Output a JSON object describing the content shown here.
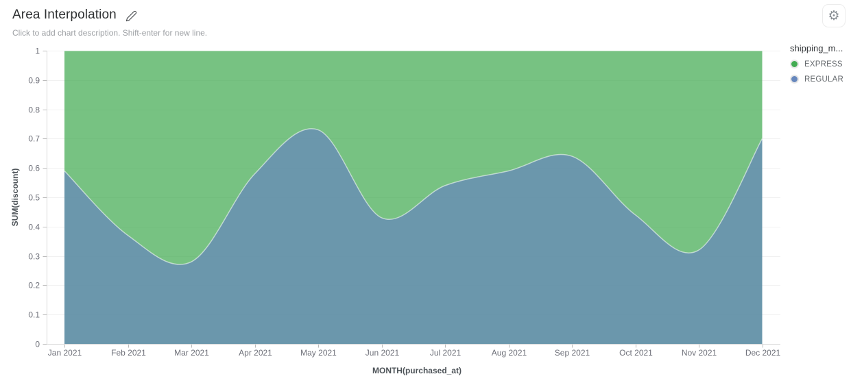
{
  "header": {
    "title": "Area Interpolation",
    "subtitle": "Click to add chart description. Shift-enter for new line."
  },
  "icons": {
    "edit_icon": "pencil",
    "settings_icon": "gear",
    "settings_glyph": "⚙"
  },
  "legend": {
    "title": "shipping_m...",
    "items": [
      {
        "label": "EXPRESS",
        "color": "#42ab52"
      },
      {
        "label": "REGULAR",
        "color": "#6687bd"
      }
    ]
  },
  "chart_data": {
    "type": "area",
    "variant": "stacked-to-100-percent",
    "smooth": true,
    "grid": true,
    "legend_position": "right",
    "title": "Area Interpolation",
    "xlabel": "MONTH(purchased_at)",
    "ylabel": "SUM(discount)",
    "ylim": [
      0,
      1
    ],
    "ytick_labels": [
      "0",
      "0.1",
      "0.2",
      "0.3",
      "0.4",
      "0.5",
      "0.6",
      "0.7",
      "0.8",
      "0.9",
      "1"
    ],
    "categories": [
      "Jan 2021",
      "Feb 2021",
      "Mar 2021",
      "Apr 2021",
      "May 2021",
      "Jun 2021",
      "Jul 2021",
      "Aug 2021",
      "Sep 2021",
      "Oct 2021",
      "Nov 2021",
      "Dec 2021"
    ],
    "series": [
      {
        "name": "REGULAR",
        "color": "#6687bd",
        "values": [
          0.59,
          0.37,
          0.28,
          0.58,
          0.73,
          0.43,
          0.54,
          0.59,
          0.64,
          0.44,
          0.32,
          0.7
        ]
      },
      {
        "name": "EXPRESS",
        "color": "#42ab52",
        "values": [
          0.41,
          0.63,
          0.72,
          0.42,
          0.27,
          0.57,
          0.46,
          0.41,
          0.36,
          0.56,
          0.68,
          0.3
        ]
      }
    ]
  }
}
